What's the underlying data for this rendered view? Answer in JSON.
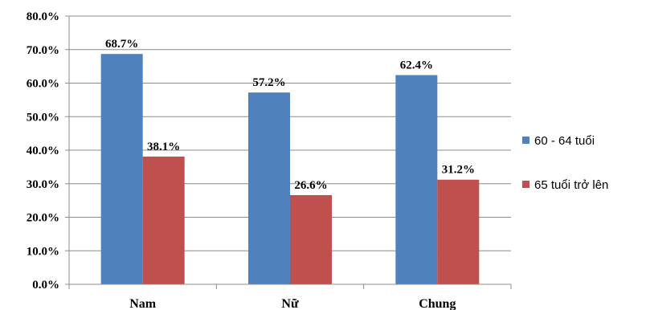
{
  "chart_data": {
    "type": "bar",
    "categories": [
      "Nam",
      "Nữ",
      "Chung"
    ],
    "series": [
      {
        "name": "60 - 64 tuổi",
        "values": [
          68.7,
          57.2,
          62.4
        ],
        "labels": [
          "68.7%",
          "57.2%",
          "62.4%"
        ],
        "color": "#4F81BD"
      },
      {
        "name": "65 tuổi trở lên",
        "values": [
          38.1,
          26.6,
          31.2
        ],
        "labels": [
          "38.1%",
          "26.6%",
          "31.2%"
        ],
        "color": "#C0504D"
      }
    ],
    "y_ticks": [
      "0.0%",
      "10.0%",
      "20.0%",
      "30.0%",
      "40.0%",
      "50.0%",
      "60.0%",
      "70.0%",
      "80.0%"
    ],
    "ylim": [
      0,
      80
    ],
    "grid": true,
    "legend_position": "right"
  }
}
